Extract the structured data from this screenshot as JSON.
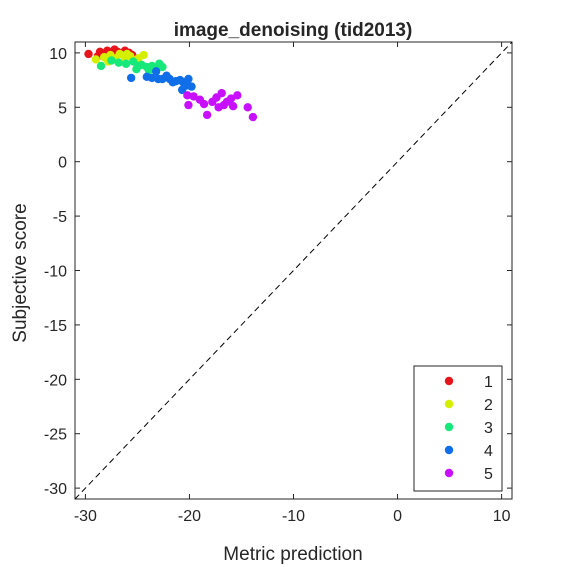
{
  "chart_data": {
    "type": "scatter",
    "title": "image_denoising (tid2013)",
    "xlabel": "Metric prediction",
    "ylabel": "Subjective score",
    "xlim": [
      -31,
      11
    ],
    "ylim": [
      -31,
      11
    ],
    "x_ticks": [
      -30,
      -20,
      -10,
      0,
      10
    ],
    "y_ticks": [
      10,
      5,
      0,
      -5,
      -10,
      -15,
      -20,
      -25,
      -30
    ],
    "x_tick_labels": [
      "-30",
      "-20",
      "-10",
      "0",
      "10"
    ],
    "y_tick_labels": [
      "10",
      "5",
      "0",
      "-5",
      "-10",
      "-15",
      "-20",
      "-25",
      "-30"
    ],
    "identity_line": true,
    "grid": false,
    "legend_position": "bottom-right",
    "series": [
      {
        "name": "1",
        "color": "#e8141c",
        "points": [
          [
            -29.7,
            9.9
          ],
          [
            -28.6,
            10.1
          ],
          [
            -28.3,
            9.8
          ],
          [
            -27.9,
            10.2
          ],
          [
            -27.5,
            10.0
          ],
          [
            -27.2,
            10.3
          ],
          [
            -26.9,
            10.1
          ],
          [
            -26.6,
            9.9
          ],
          [
            -26.2,
            10.2
          ],
          [
            -25.8,
            10.0
          ],
          [
            -25.5,
            9.8
          ],
          [
            -28.8,
            9.7
          ]
        ]
      },
      {
        "name": "2",
        "color": "#d4f000",
        "points": [
          [
            -29.0,
            9.4
          ],
          [
            -28.2,
            9.6
          ],
          [
            -27.6,
            9.8
          ],
          [
            -27.1,
            9.5
          ],
          [
            -26.7,
            9.9
          ],
          [
            -26.2,
            9.6
          ],
          [
            -25.7,
            9.7
          ],
          [
            -25.3,
            9.3
          ],
          [
            -24.9,
            9.5
          ],
          [
            -24.4,
            9.8
          ],
          [
            -27.8,
            9.2
          ],
          [
            -26.0,
            9.9
          ]
        ]
      },
      {
        "name": "3",
        "color": "#17e87a",
        "points": [
          [
            -28.5,
            8.8
          ],
          [
            -27.5,
            9.3
          ],
          [
            -26.8,
            9.1
          ],
          [
            -26.1,
            9.0
          ],
          [
            -25.4,
            9.2
          ],
          [
            -24.9,
            8.8
          ],
          [
            -24.6,
            8.9
          ],
          [
            -24.1,
            8.7
          ],
          [
            -23.6,
            8.8
          ],
          [
            -23.2,
            8.6
          ],
          [
            -22.9,
            9.0
          ],
          [
            -22.6,
            8.7
          ],
          [
            -23.9,
            8.4
          ],
          [
            -25.1,
            8.5
          ]
        ]
      },
      {
        "name": "4",
        "color": "#0f6ee8",
        "points": [
          [
            -25.6,
            7.7
          ],
          [
            -24.1,
            7.8
          ],
          [
            -23.6,
            7.7
          ],
          [
            -23.2,
            8.3
          ],
          [
            -22.6,
            7.6
          ],
          [
            -21.9,
            7.6
          ],
          [
            -21.3,
            7.4
          ],
          [
            -20.9,
            7.5
          ],
          [
            -20.6,
            7.3
          ],
          [
            -20.3,
            7.0
          ],
          [
            -20.1,
            7.6
          ],
          [
            -19.8,
            6.9
          ],
          [
            -20.7,
            6.6
          ],
          [
            -21.6,
            7.3
          ],
          [
            -22.2,
            7.9
          ],
          [
            -23.0,
            7.6
          ]
        ]
      },
      {
        "name": "5",
        "color": "#c80fff",
        "points": [
          [
            -20.2,
            6.1
          ],
          [
            -19.6,
            6.0
          ],
          [
            -18.6,
            5.3
          ],
          [
            -18.3,
            4.3
          ],
          [
            -17.8,
            5.5
          ],
          [
            -17.4,
            5.9
          ],
          [
            -16.9,
            6.3
          ],
          [
            -16.7,
            5.2
          ],
          [
            -16.4,
            5.5
          ],
          [
            -16.0,
            5.8
          ],
          [
            -15.8,
            5.1
          ],
          [
            -15.4,
            6.1
          ],
          [
            -14.4,
            5.0
          ],
          [
            -13.9,
            4.1
          ],
          [
            -17.2,
            5.0
          ],
          [
            -19.0,
            5.7
          ],
          [
            -20.1,
            5.2
          ]
        ]
      }
    ]
  }
}
